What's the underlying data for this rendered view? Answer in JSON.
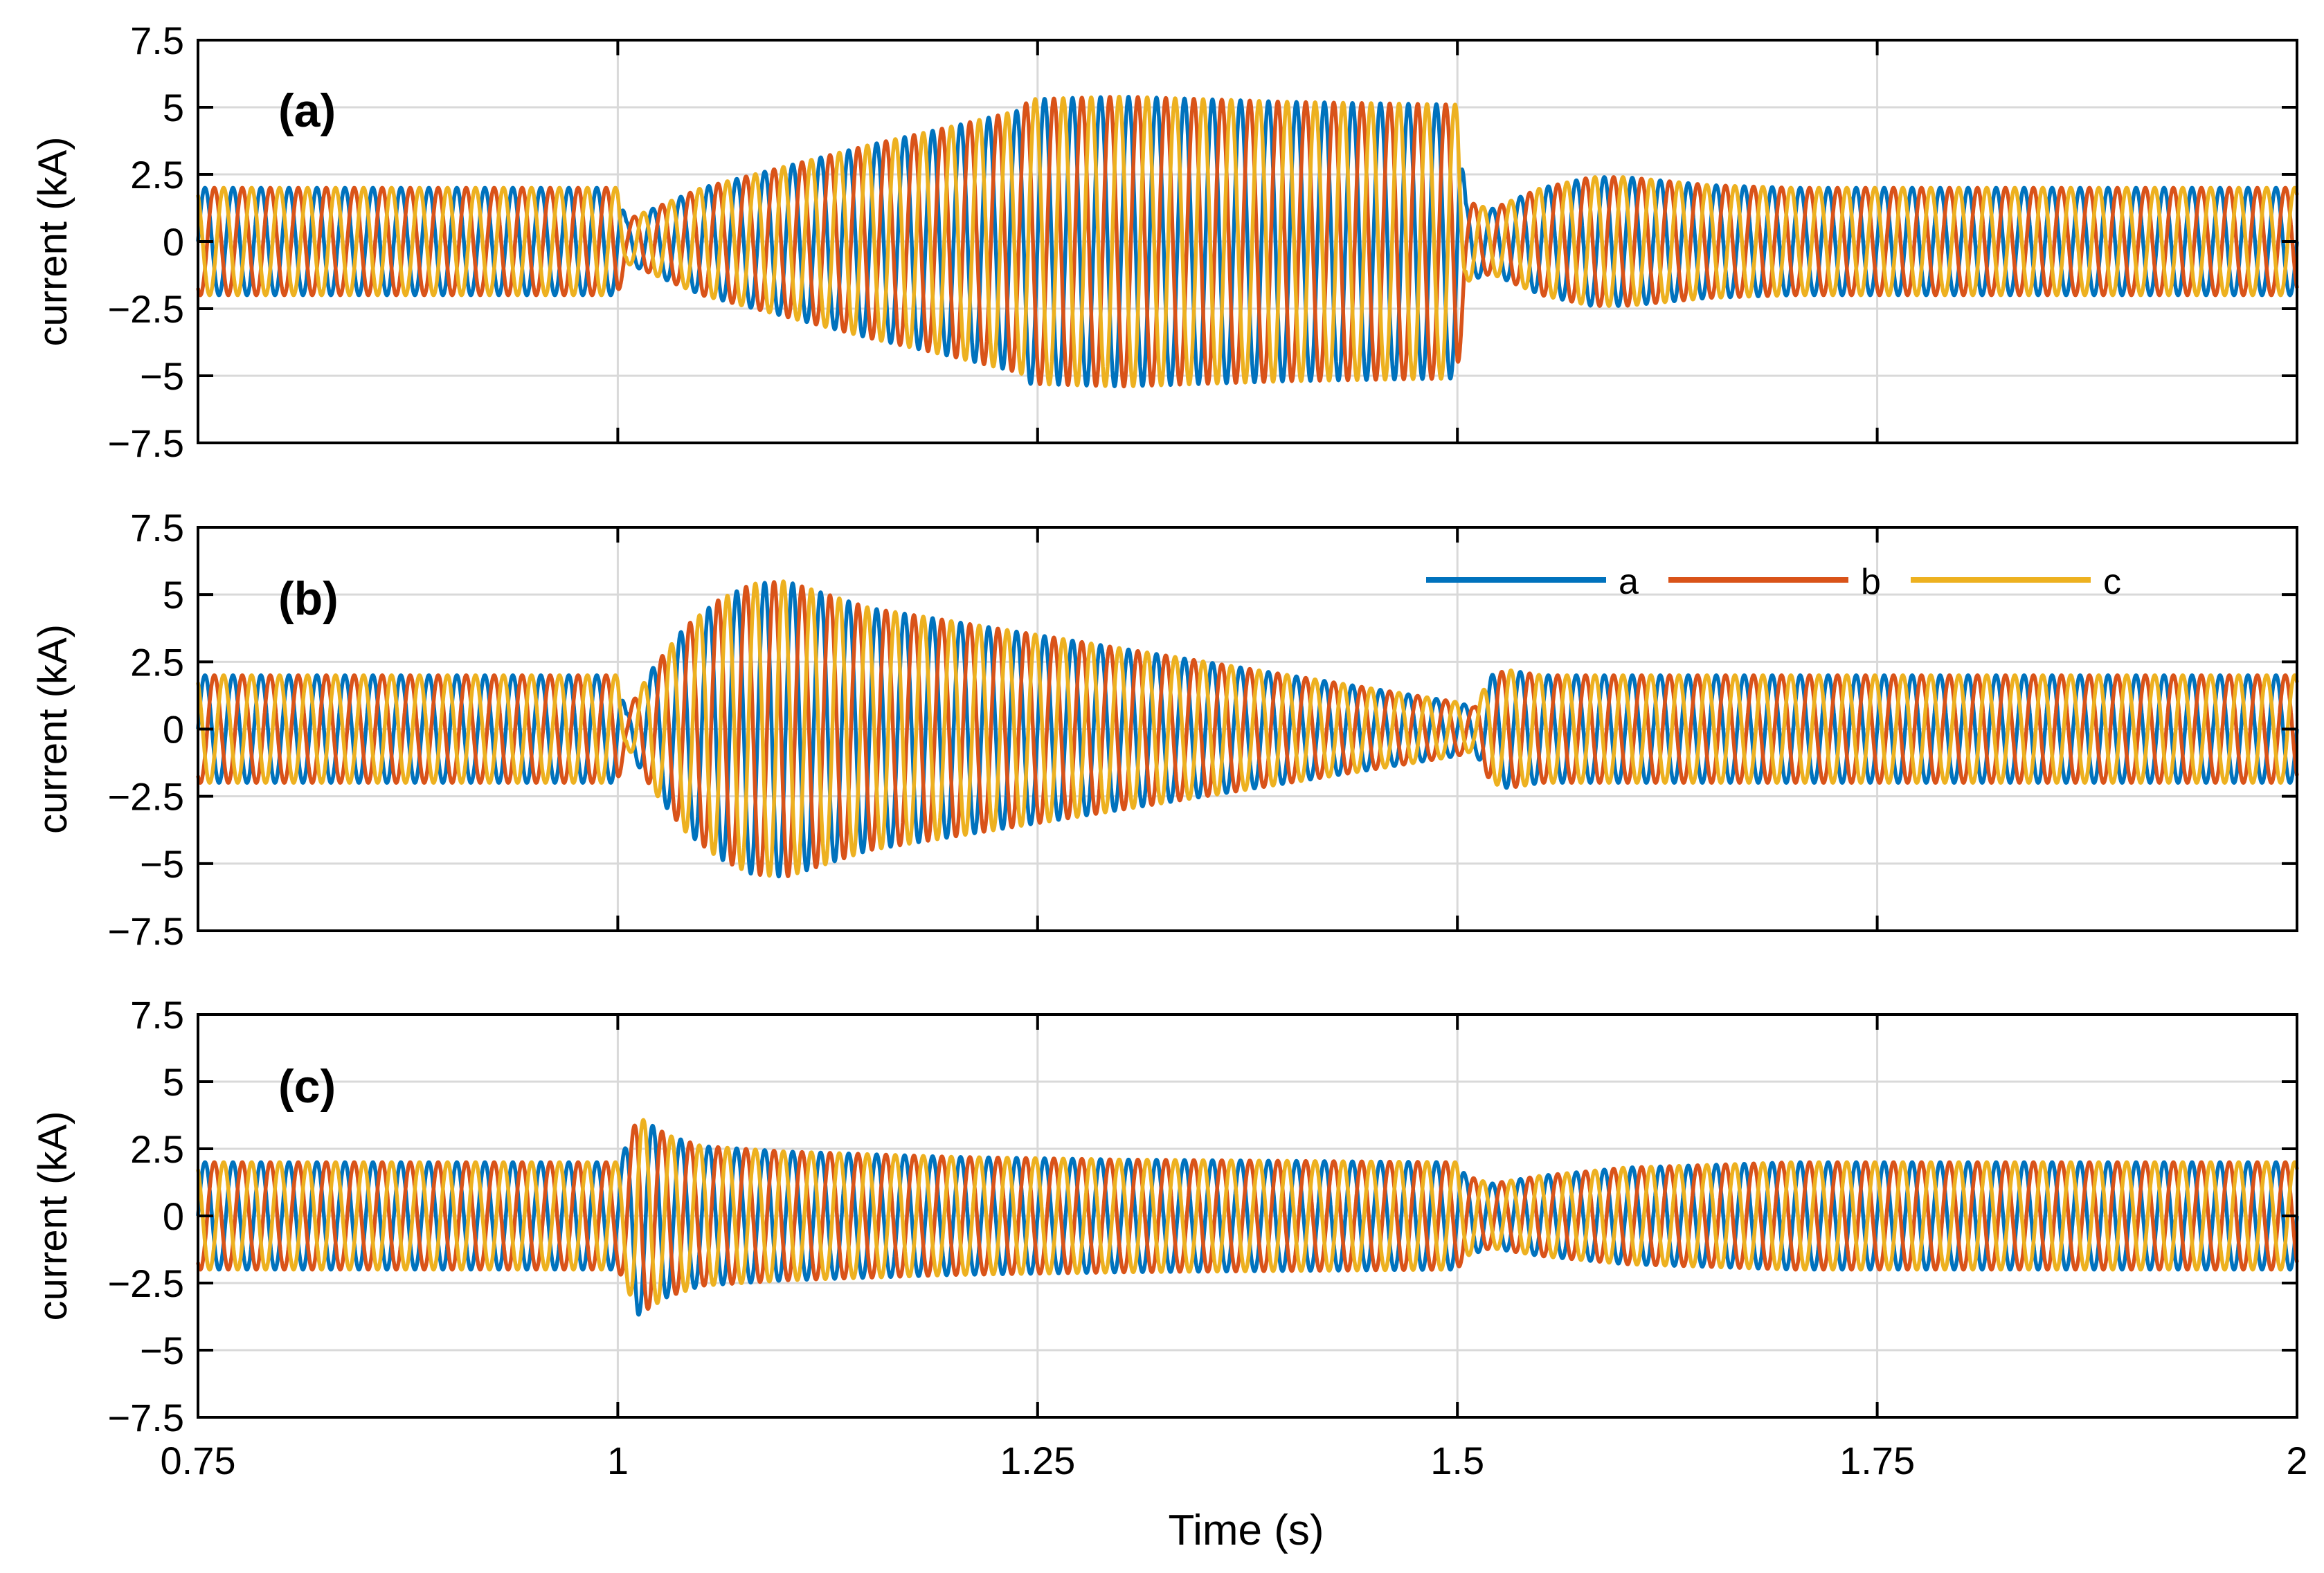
{
  "xlabel": "Time (s)",
  "ylabel": "current (kA)",
  "colors": {
    "a": "#0072BD",
    "b": "#D95319",
    "c": "#EDB120",
    "grid": "#d9d9d9",
    "axis": "#000000"
  },
  "legend": {
    "entries": [
      "a",
      "b",
      "c"
    ],
    "placement": "top-right of panel (b)"
  },
  "chart_data": [
    {
      "type": "line",
      "panel_label": "(a)",
      "title": "",
      "xlabel": "Time (s)",
      "ylabel": "current (kA)",
      "xlim": [
        0.75,
        2
      ],
      "ylim": [
        -7.5,
        7.5
      ],
      "xticks": [
        0.75,
        1,
        1.25,
        1.5,
        1.75,
        2
      ],
      "yticks": [
        -7.5,
        -5,
        -2.5,
        0,
        2.5,
        5,
        7.5
      ],
      "ytick_labels": [
        "−7.5",
        "−5",
        "−2.5",
        "0",
        "2.5",
        "5",
        "7.5"
      ],
      "grid": true,
      "frequency_hz": 60,
      "series": [
        {
          "name": "a",
          "phase_deg": 0
        },
        {
          "name": "b",
          "phase_deg": -120
        },
        {
          "name": "c",
          "phase_deg": 120
        }
      ],
      "envelope": {
        "t": [
          0.75,
          1.0,
          1.005,
          1.02,
          1.05,
          1.1,
          1.15,
          1.2,
          1.24,
          1.245,
          1.3,
          1.4,
          1.5,
          1.505,
          1.52,
          1.55,
          1.58,
          1.6,
          1.65,
          1.7,
          2.0
        ],
        "amplitude": [
          2.0,
          2.0,
          0.8,
          1.2,
          2.0,
          2.8,
          3.6,
          4.3,
          4.9,
          5.3,
          5.4,
          5.2,
          5.1,
          1.5,
          1.2,
          2.0,
          2.4,
          2.4,
          2.1,
          2.0,
          2.0
        ]
      }
    },
    {
      "type": "line",
      "panel_label": "(b)",
      "title": "",
      "xlabel": "Time (s)",
      "ylabel": "current (kA)",
      "xlim": [
        0.75,
        2
      ],
      "ylim": [
        -7.5,
        7.5
      ],
      "xticks": [
        0.75,
        1,
        1.25,
        1.5,
        1.75,
        2
      ],
      "yticks": [
        -7.5,
        -5,
        -2.5,
        0,
        2.5,
        5,
        7.5
      ],
      "ytick_labels": [
        "−7.5",
        "−5",
        "−2.5",
        "0",
        "2.5",
        "5",
        "7.5"
      ],
      "grid": true,
      "frequency_hz": 60,
      "series": [
        {
          "name": "a",
          "phase_deg": 0
        },
        {
          "name": "b",
          "phase_deg": -120
        },
        {
          "name": "c",
          "phase_deg": 120
        }
      ],
      "envelope": {
        "t": [
          0.75,
          1.0,
          1.005,
          1.02,
          1.04,
          1.06,
          1.08,
          1.1,
          1.15,
          1.2,
          1.3,
          1.4,
          1.45,
          1.5,
          1.51,
          1.52,
          1.53,
          1.55,
          2.0
        ],
        "amplitude": [
          2.0,
          2.0,
          0.6,
          2.2,
          3.8,
          4.8,
          5.4,
          5.5,
          4.5,
          4.0,
          3.0,
          2.0,
          1.5,
          1.0,
          0.8,
          2.0,
          2.2,
          2.0,
          2.0
        ]
      }
    },
    {
      "type": "line",
      "panel_label": "(c)",
      "title": "",
      "xlabel": "Time (s)",
      "ylabel": "current (kA)",
      "xlim": [
        0.75,
        2
      ],
      "ylim": [
        -7.5,
        7.5
      ],
      "xticks": [
        0.75,
        1,
        1.25,
        1.5,
        1.75,
        2
      ],
      "xtick_labels": [
        "0.75",
        "1",
        "1.25",
        "1.5",
        "1.75",
        "2"
      ],
      "yticks": [
        -7.5,
        -5,
        -2.5,
        0,
        2.5,
        5,
        7.5
      ],
      "ytick_labels": [
        "−7.5",
        "−5",
        "−2.5",
        "0",
        "2.5",
        "5",
        "7.5"
      ],
      "grid": true,
      "frequency_hz": 60,
      "series": [
        {
          "name": "a",
          "phase_deg": 0
        },
        {
          "name": "b",
          "phase_deg": -120
        },
        {
          "name": "c",
          "phase_deg": 120
        }
      ],
      "envelope": {
        "t": [
          0.75,
          1.0,
          1.005,
          1.012,
          1.03,
          1.05,
          1.1,
          1.2,
          1.3,
          1.5,
          1.505,
          1.52,
          1.55,
          1.6,
          1.7,
          2.0
        ],
        "amplitude": [
          2.0,
          2.0,
          2.6,
          3.7,
          3.0,
          2.6,
          2.4,
          2.2,
          2.1,
          2.0,
          1.5,
          1.2,
          1.5,
          1.8,
          2.0,
          2.0
        ]
      }
    }
  ]
}
